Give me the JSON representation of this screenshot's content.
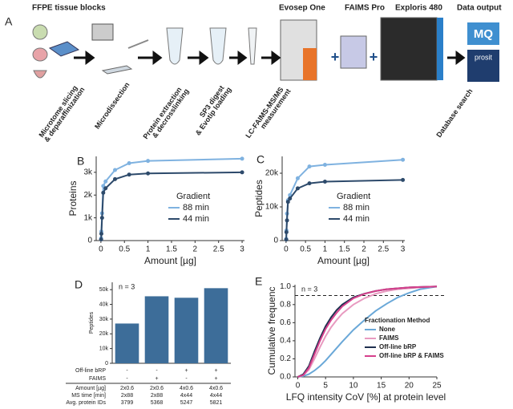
{
  "workflow": {
    "panel": "A",
    "title": "FFPE tissue blocks",
    "instruments": [
      "Evosep One",
      "FAIMS Pro",
      "Exploris 480"
    ],
    "output": "Data output",
    "steps": [
      [
        "Microtome slicing",
        "& deparaffinization"
      ],
      [
        "Microdissection"
      ],
      [
        "Protein extraction",
        "& decrosslinking"
      ],
      [
        "SP3 digest",
        "& Evotip loading"
      ],
      [
        "LC-FAIMS-MS/MS",
        "measurement"
      ],
      [
        "Database search"
      ]
    ],
    "plus": [
      "+",
      "+"
    ],
    "logos": [
      "MQ",
      "prosit"
    ]
  },
  "chart_data": [
    {
      "type": "line",
      "panel": "B",
      "xlabel": "Amount [µg]",
      "ylabel": "Proteins",
      "x": [
        0.005,
        0.01,
        0.025,
        0.05,
        0.1,
        0.3,
        0.6,
        1,
        3
      ],
      "series": [
        {
          "name": "88 min",
          "color": "#7fb2e0",
          "values": [
            100,
            400,
            1200,
            2400,
            2600,
            3100,
            3400,
            3500,
            3600
          ]
        },
        {
          "name": "44 min",
          "color": "#2d4a6b",
          "values": [
            50,
            300,
            1000,
            2100,
            2300,
            2700,
            2900,
            2950,
            3000
          ]
        }
      ],
      "xlim": [
        -0.1,
        3.05
      ],
      "xticks": [
        0,
        0.5,
        1,
        1.5,
        2,
        2.5,
        3
      ],
      "ylim": [
        0,
        3700
      ],
      "yticks": [
        0,
        {
          "value": 1000,
          "label": "1k"
        },
        {
          "value": 2000,
          "label": "2k"
        },
        {
          "value": 3000,
          "label": "3k"
        }
      ],
      "legend_title": "Gradient",
      "legend": "lower right"
    },
    {
      "type": "line",
      "panel": "C",
      "xlabel": "Amount [µg]",
      "ylabel": "Peptides",
      "x": [
        0.005,
        0.01,
        0.025,
        0.05,
        0.1,
        0.3,
        0.6,
        1,
        3
      ],
      "series": [
        {
          "name": "88 min",
          "color": "#7fb2e0",
          "values": [
            500,
            3000,
            8000,
            12000,
            13500,
            18500,
            22000,
            22500,
            24000
          ]
        },
        {
          "name": "44 min",
          "color": "#2d4a6b",
          "values": [
            300,
            2500,
            6000,
            11500,
            12500,
            15500,
            17000,
            17500,
            18000
          ]
        }
      ],
      "xlim": [
        -0.1,
        3.05
      ],
      "xticks": [
        0,
        0.5,
        1,
        1.5,
        2,
        2.5,
        3
      ],
      "ylim": [
        0,
        25000
      ],
      "yticks": [
        0,
        {
          "value": 10000,
          "label": "10k"
        },
        {
          "value": 20000,
          "label": "20k"
        }
      ],
      "legend_title": "Gradient",
      "legend": "lower right"
    },
    {
      "type": "bar",
      "panel": "D",
      "ylabel": "Peptides",
      "annotation": "n = 3",
      "color": "#3d6d99",
      "values": [
        27000,
        45500,
        44500,
        51000
      ],
      "ylim": [
        0,
        55000
      ],
      "yticks": [
        0,
        {
          "value": 10000,
          "label": "10k"
        },
        {
          "value": 20000,
          "label": "20k"
        },
        {
          "value": 30000,
          "label": "30k"
        },
        {
          "value": 40000,
          "label": "40k"
        },
        {
          "value": 50000,
          "label": "50k"
        }
      ],
      "table": [
        {
          "label": "Off-line bRP",
          "cells": [
            "-",
            "-",
            "+",
            "+"
          ]
        },
        {
          "label": "FAIMS",
          "cells": [
            "-",
            "+",
            "-",
            "+"
          ]
        },
        {
          "label": "Amount [µg]",
          "cells": [
            "2x0.6",
            "2x0.6",
            "4x0.6",
            "4x0.6"
          ]
        },
        {
          "label": "MS time [min]",
          "cells": [
            "2x88",
            "2x88",
            "4x44",
            "4x44"
          ]
        },
        {
          "label": "Avg. protein IDs",
          "cells": [
            "3799",
            "5368",
            "5247",
            "5821"
          ]
        }
      ]
    },
    {
      "type": "line",
      "panel": "E",
      "xlabel": "LFQ intensity CoV [%] at protein level",
      "ylabel": "Cumulative frequenc",
      "annotation": "n = 3",
      "x": [
        0,
        1,
        2,
        3,
        4,
        5,
        6,
        7,
        8,
        10,
        12,
        14,
        16,
        18,
        20,
        22,
        25
      ],
      "series": [
        {
          "name": "None",
          "color": "#6aa8d8",
          "values": [
            0,
            0.01,
            0.03,
            0.07,
            0.12,
            0.18,
            0.25,
            0.32,
            0.39,
            0.52,
            0.63,
            0.73,
            0.81,
            0.88,
            0.93,
            0.97,
            1
          ]
        },
        {
          "name": "FAIMS",
          "color": "#e89ac0",
          "values": [
            0,
            0.02,
            0.08,
            0.2,
            0.33,
            0.45,
            0.55,
            0.63,
            0.7,
            0.8,
            0.87,
            0.92,
            0.95,
            0.97,
            0.98,
            0.99,
            1
          ]
        },
        {
          "name": "Off-line bRP",
          "color": "#1f2f4f",
          "values": [
            0,
            0.03,
            0.12,
            0.28,
            0.43,
            0.56,
            0.66,
            0.74,
            0.8,
            0.88,
            0.92,
            0.95,
            0.97,
            0.98,
            0.99,
            0.995,
            1
          ]
        },
        {
          "name": "Off-line bRP & FAIMS",
          "color": "#d6408c",
          "values": [
            0,
            0.02,
            0.1,
            0.25,
            0.4,
            0.53,
            0.63,
            0.71,
            0.78,
            0.87,
            0.92,
            0.95,
            0.97,
            0.98,
            0.99,
            0.995,
            1
          ]
        }
      ],
      "xlim": [
        -0.5,
        25
      ],
      "xticks": [
        0,
        5,
        10,
        15,
        20,
        25
      ],
      "ylim": [
        0,
        1.02
      ],
      "yticks": [
        {
          "value": 0,
          "label": "0.0"
        },
        {
          "value": 0.2,
          "label": "0.2"
        },
        {
          "value": 0.4,
          "label": "0.4"
        },
        {
          "value": 0.6,
          "label": "0.6"
        },
        {
          "value": 0.8,
          "label": "0.8"
        },
        {
          "value": 1,
          "label": "1.0"
        }
      ],
      "hline": 0.9,
      "legend_title": "Fractionation Method",
      "legend": "lower right"
    }
  ]
}
